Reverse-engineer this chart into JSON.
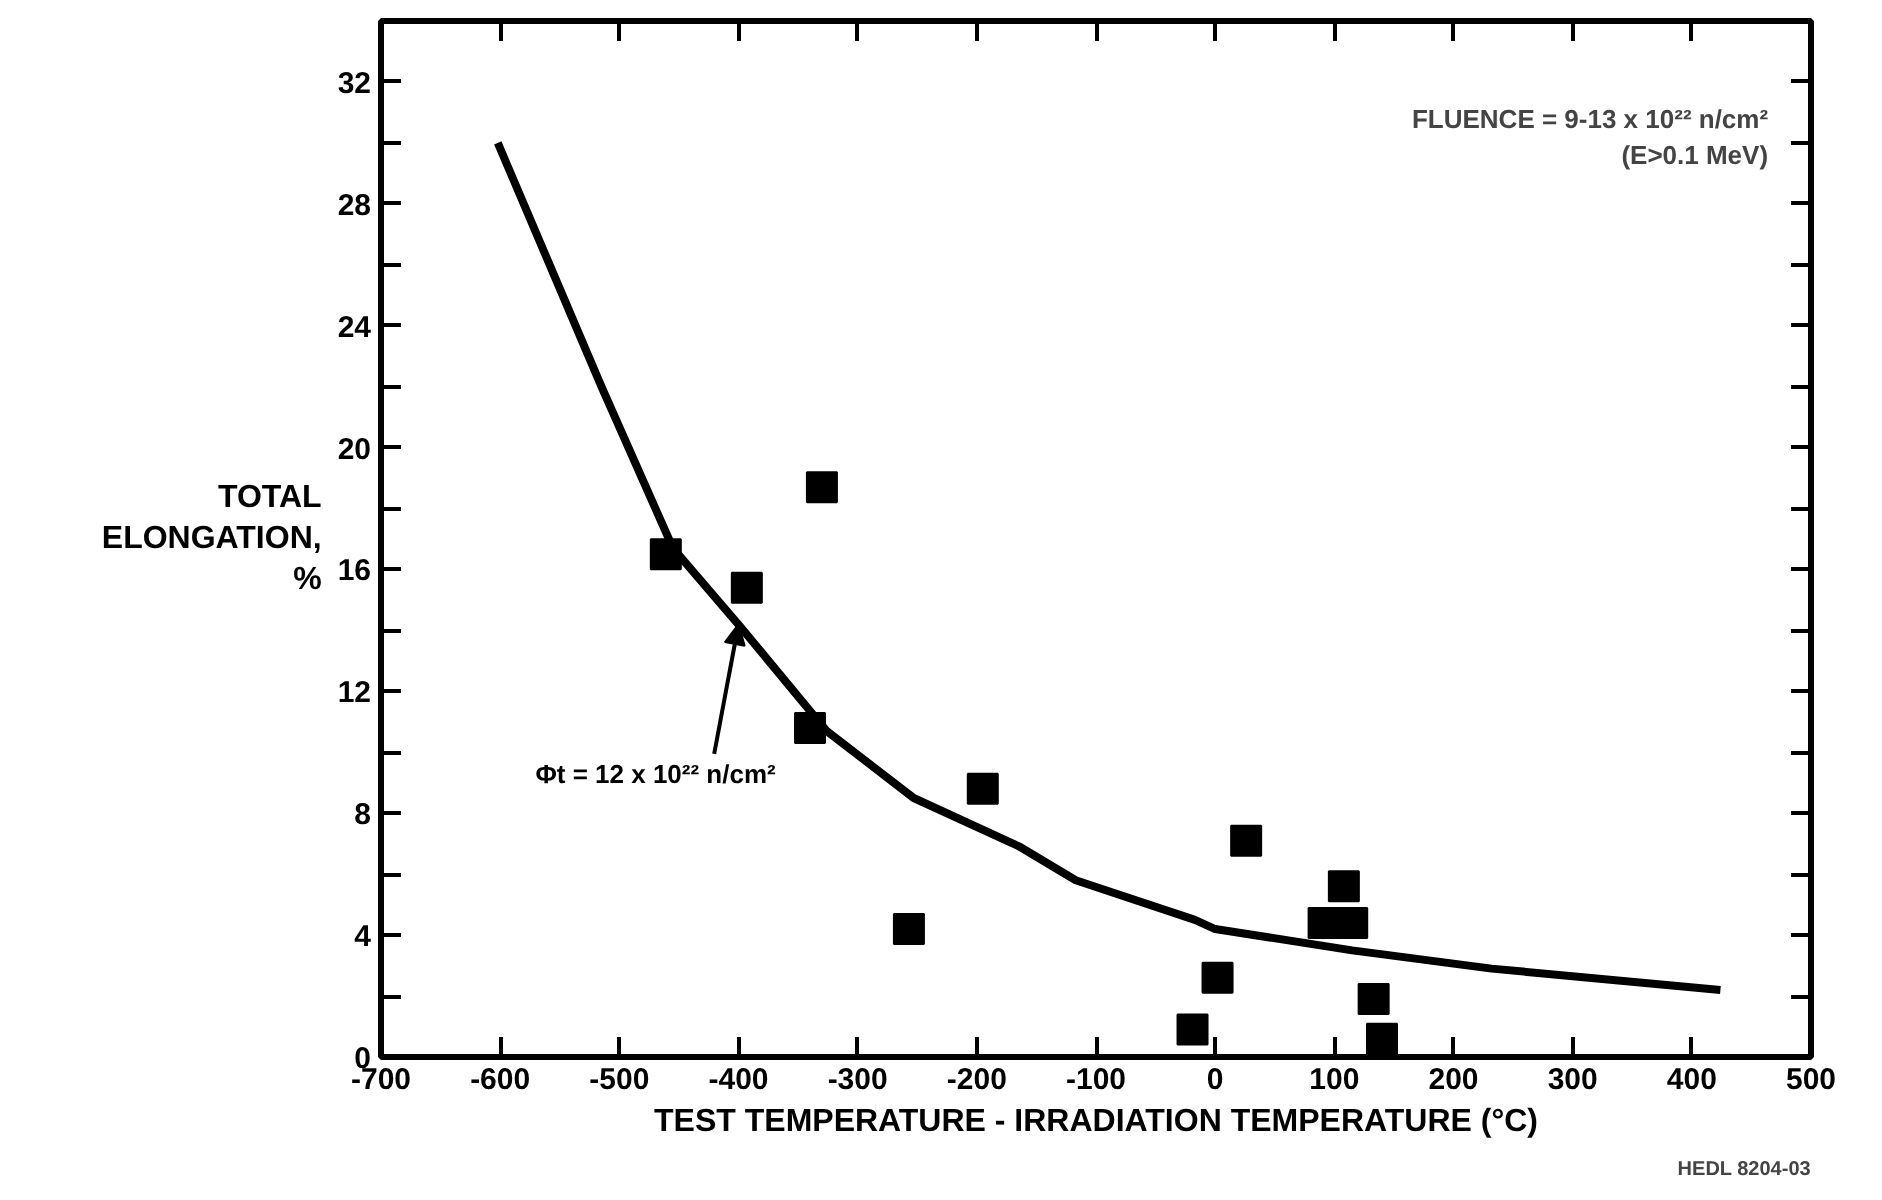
{
  "chart_data": {
    "type": "scatter",
    "xlabel": "TEST TEMPERATURE - IRRADIATION TEMPERATURE (°C)",
    "ylabel": "TOTAL\nELONGATION,\n%",
    "xlim": [
      -700,
      500
    ],
    "ylim": [
      0,
      34
    ],
    "xticks": [
      -700,
      -600,
      -500,
      -400,
      -300,
      -200,
      -100,
      0,
      100,
      200,
      300,
      400,
      500
    ],
    "yticks": [
      0,
      {
        "value": 2,
        "label": null
      },
      4,
      {
        "value": 6,
        "label": null
      },
      8,
      {
        "value": 10,
        "label": null
      },
      12,
      {
        "value": 14,
        "label": null
      },
      16,
      {
        "value": 18,
        "label": null
      },
      20,
      {
        "value": 22,
        "label": null
      },
      24,
      {
        "value": 26,
        "label": null
      },
      28,
      {
        "value": 30,
        "label": null
      },
      32
    ],
    "marker": "square",
    "grid": false,
    "series": [
      {
        "color": "#000000",
        "x": [
          -461,
          -393,
          -330,
          -340,
          -195,
          -257,
          26,
          108,
          91,
          115,
          2,
          -19,
          133,
          140
        ],
        "values": [
          16.5,
          15.4,
          18.7,
          10.8,
          8.8,
          4.2,
          7.1,
          5.6,
          4.4,
          4.4,
          2.6,
          0.9,
          1.9,
          0.6
        ]
      },
      {
        "type": "line",
        "color": "#000000",
        "marker": "none",
        "x": [
          -602,
          -515,
          -455,
          -398,
          -326,
          -253,
          -164,
          -117,
          -17,
          0,
          115,
          232,
          424
        ],
        "values": [
          30.0,
          22.0,
          16.7,
          14.1,
          10.7,
          8.5,
          6.9,
          5.8,
          4.5,
          4.2,
          3.5,
          2.9,
          2.2
        ]
      }
    ],
    "annotations": [
      "FLUENCE = 9-13 x 10²² n/cm²\n(E>0.1 MeV)",
      {
        "text": "Φt = 12 x 10²² n/cm²",
        "x": -400,
        "y": 14.2
      },
      "HEDL 8204-03"
    ]
  }
}
